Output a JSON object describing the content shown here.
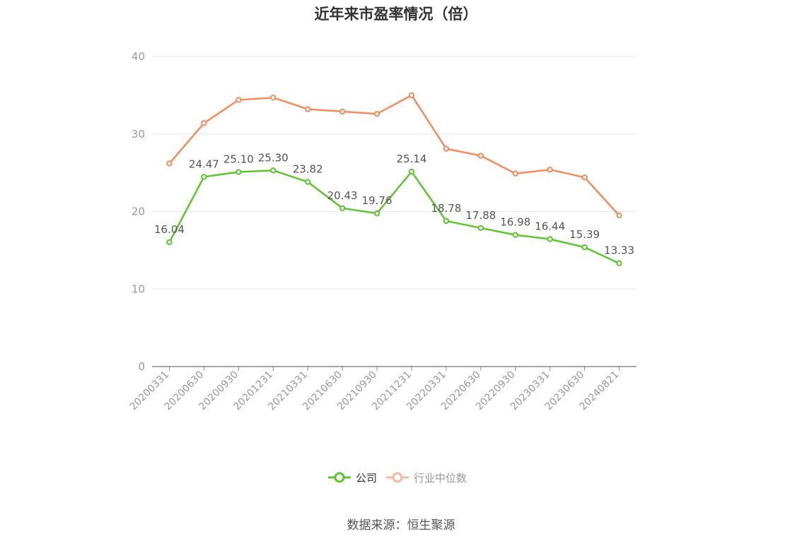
{
  "title": "近年来市盈率情况（倍）",
  "source": "数据来源：恒生聚源",
  "colors": {
    "company": "#5cc62f",
    "industry": "#f28c5b",
    "industry_legend": "#f6b8a0",
    "axis": "#999999",
    "grid": "#e6e9f0",
    "label": "#555555"
  },
  "chart_data": {
    "type": "line",
    "title": "近年来市盈率情况（倍）",
    "xlabel": "",
    "ylabel": "",
    "ylim": [
      0,
      40
    ],
    "yticks": [
      "0",
      "10",
      "20",
      "30",
      "40"
    ],
    "grid": true,
    "legend_position": "bottom",
    "categories": [
      "20200331",
      "20200630",
      "20200930",
      "20201231",
      "20210331",
      "20210630",
      "20210930",
      "20211231",
      "20220331",
      "20220630",
      "20220930",
      "20230331",
      "20230630",
      "20240821"
    ],
    "series": [
      {
        "name": "公司",
        "color": "#5cc62f",
        "values": [
          16.04,
          24.47,
          25.1,
          25.3,
          23.82,
          20.43,
          19.76,
          25.14,
          18.78,
          17.88,
          16.98,
          16.44,
          15.39,
          13.33
        ],
        "labels": [
          "16.04",
          "24.47",
          "25.10",
          "25.30",
          "23.82",
          "20.43",
          "19.76",
          "25.14",
          "18.78",
          "17.88",
          "16.98",
          "16.44",
          "15.39",
          "13.33"
        ]
      },
      {
        "name": "行业中位数",
        "color": "#f28c5b",
        "values": [
          26.2,
          31.4,
          34.4,
          34.7,
          33.2,
          32.9,
          32.6,
          35.0,
          28.1,
          27.2,
          24.9,
          25.4,
          24.4,
          19.5
        ]
      }
    ]
  },
  "legend": {
    "company": "公司",
    "industry": "行业中位数"
  }
}
